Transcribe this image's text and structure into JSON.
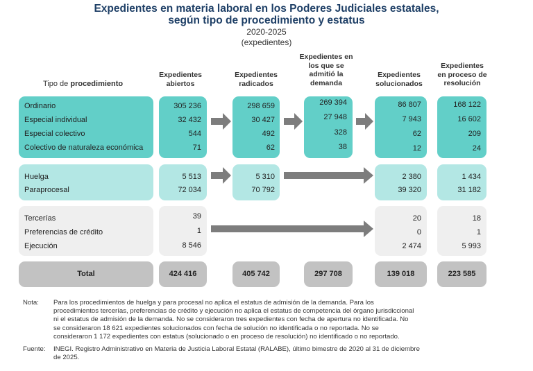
{
  "header": {
    "title_line1": "Expedientes en materia laboral en los Poderes Judiciales estatales,",
    "title_line2": "según tipo de procedimiento y estatus",
    "years": "2020-2025",
    "units": "(expedientes)"
  },
  "columns": {
    "tipo_prefix": "Tipo de ",
    "tipo_bold": "procedimiento",
    "abiertos": [
      "Expedientes",
      "abiertos"
    ],
    "radicados": [
      "Expedientes",
      "radicados"
    ],
    "admitio": [
      "Expedientes en",
      "los que se",
      "admitió la",
      "demanda"
    ],
    "solucionados": [
      "Expedientes",
      "solucionados"
    ],
    "proceso": [
      "Expedientes",
      "en proceso de",
      "resolución"
    ]
  },
  "group1": {
    "labels": [
      "Ordinario",
      "Especial individual",
      "Especial colectivo",
      "Colectivo de naturaleza económica"
    ],
    "abiertos": [
      "305 236",
      "32 432",
      "544",
      "71"
    ],
    "radicados": [
      "298 659",
      "30 427",
      "492",
      "62"
    ],
    "admitio": [
      "269 394",
      "27 948",
      "328",
      "38"
    ],
    "solucionados": [
      "86 807",
      "7 943",
      "62",
      "12"
    ],
    "proceso": [
      "168 122",
      "16 602",
      "209",
      "24"
    ]
  },
  "group2": {
    "labels": [
      "Huelga",
      "Paraprocesal"
    ],
    "abiertos": [
      "5 513",
      "72 034"
    ],
    "radicados": [
      "5 310",
      "70 792"
    ],
    "solucionados": [
      "2 380",
      "39 320"
    ],
    "proceso": [
      "1 434",
      "31 182"
    ]
  },
  "group3": {
    "labels": [
      "Tercerías",
      "Preferencias de crédito",
      "Ejecución"
    ],
    "abiertos": [
      "39",
      "1",
      "8 546"
    ],
    "solucionados": [
      "20",
      "0",
      "2 474"
    ],
    "proceso": [
      "18",
      "1",
      "5 993"
    ]
  },
  "totals": {
    "label": "Total",
    "abiertos": "424 416",
    "radicados": "405 742",
    "admitio": "297 708",
    "solucionados": "139 018",
    "proceso": "223 585"
  },
  "notes": {
    "nota_label": "Nota:",
    "nota_lines": [
      "Para los procedimientos de huelga y para procesal no aplica el estatus de admisión de la demanda. Para los",
      "procedimientos tercerías, preferencias de crédito y ejecución no aplica el estatus de competencia del órgano jurisdiccional",
      "ni el estatus de admisión de la demanda. No se consideraron tres expedientes con fecha de apertura no identificada. No",
      "se consideraron 18 621 expedientes solucionados con fecha de solución no identificada o no reportada. No se",
      "consideraron 1 172 expedientes con estatus (solucionado o en proceso de resolución) no identificado o no reportado."
    ],
    "fuente_label": "Fuente:",
    "fuente_lines": [
      "INEGI. Registro Administrativo en Materia de Justicia Laboral Estatal (RALABE), último bimestre de 2020 al 31 de diciembre",
      "de 2025."
    ]
  }
}
